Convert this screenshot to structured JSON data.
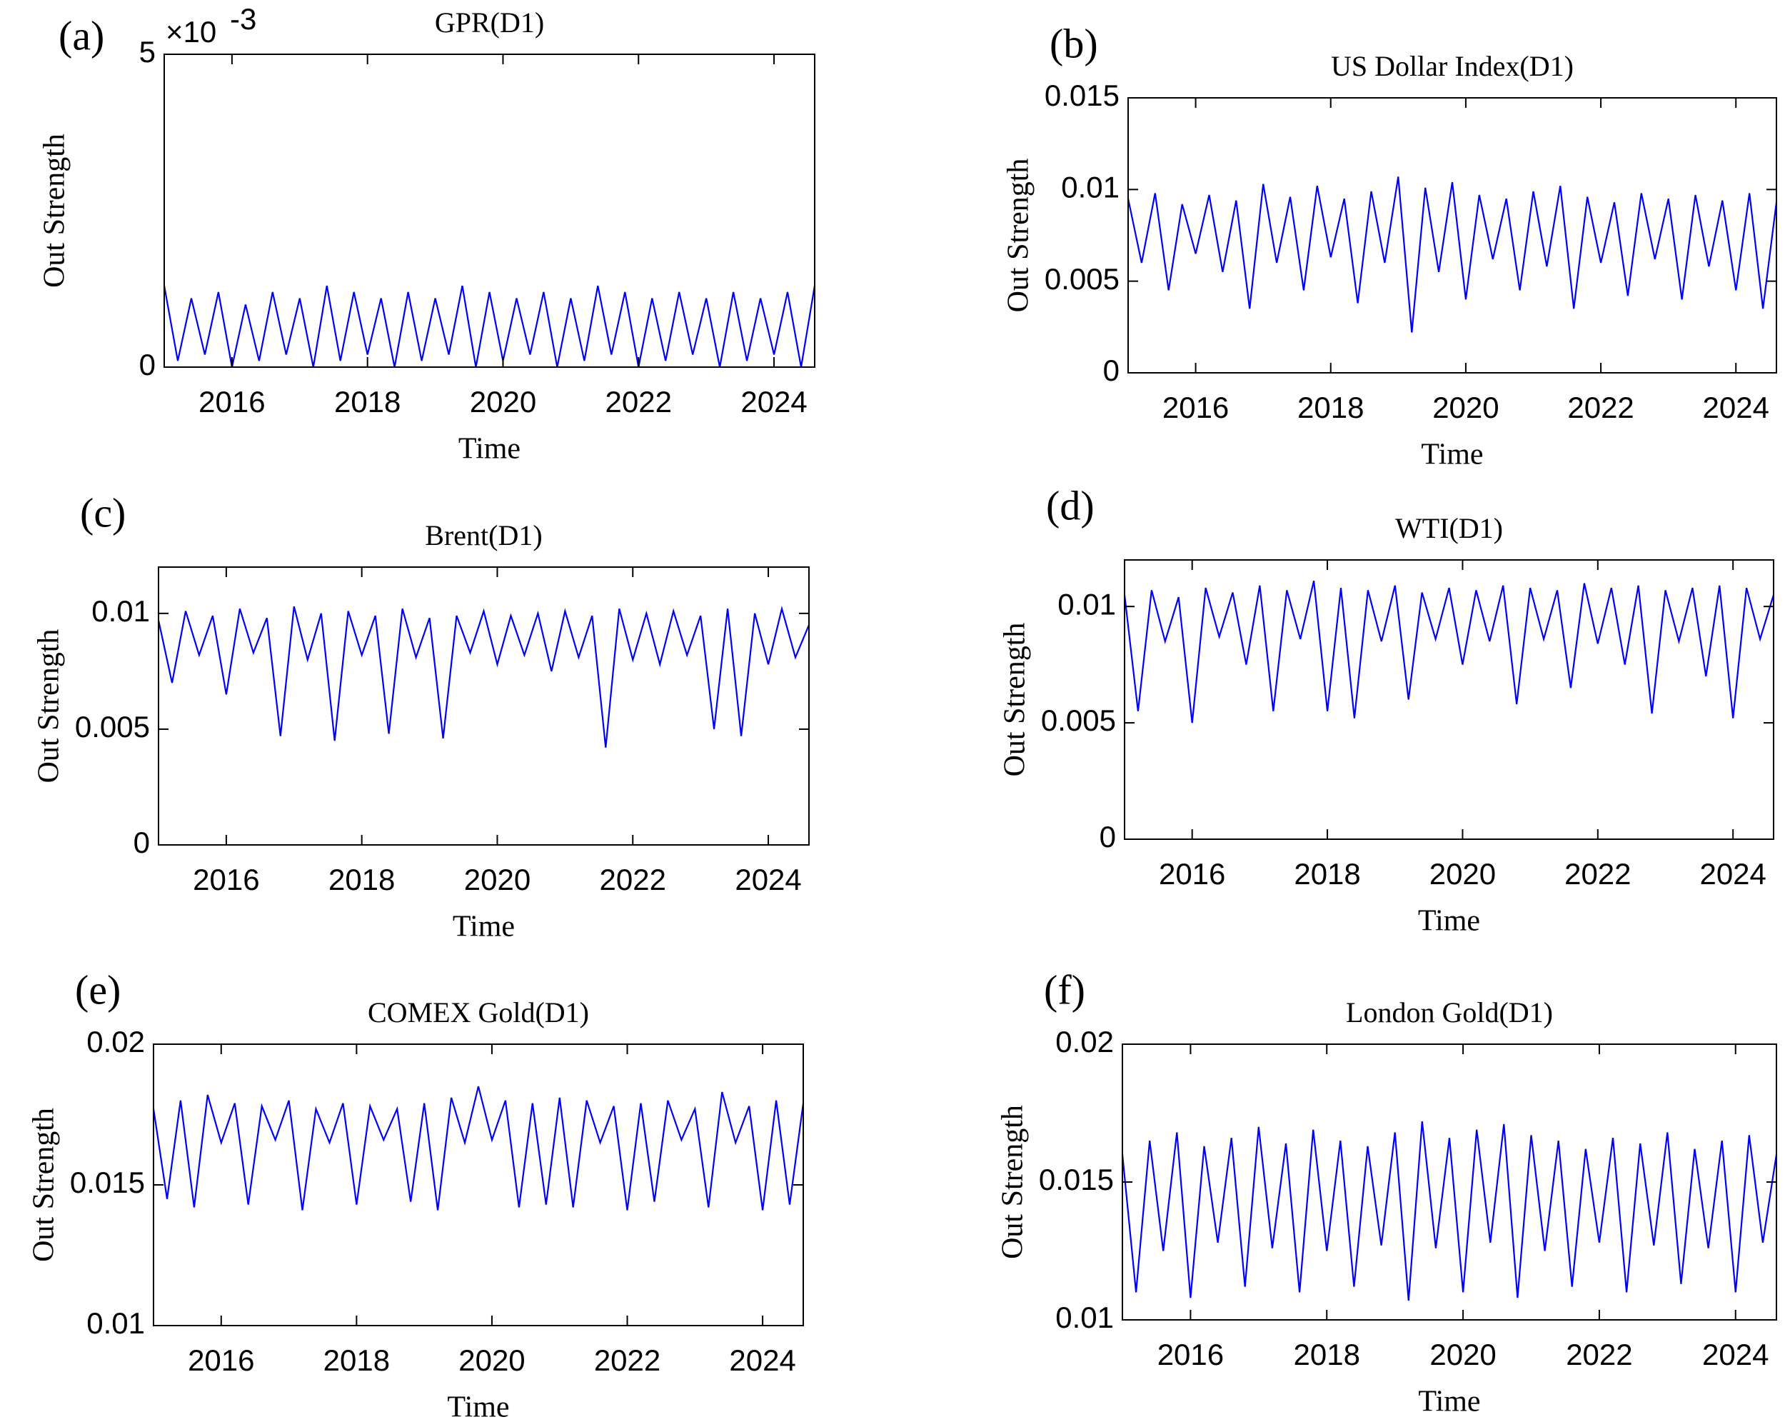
{
  "chart_data": [
    {
      "type": "line",
      "panel": "(a)",
      "title": "GPR(D1)",
      "xlabel": "Time",
      "ylabel": "Out Strength",
      "y_multiplier": "×10",
      "y_multiplier_exponent": "-3",
      "x": [
        2015,
        2015.2,
        2015.4,
        2015.6,
        2015.8,
        2016,
        2016.2,
        2016.4,
        2016.6,
        2016.8,
        2017,
        2017.2,
        2017.4,
        2017.6,
        2017.8,
        2018,
        2018.2,
        2018.4,
        2018.6,
        2018.8,
        2019,
        2019.2,
        2019.4,
        2019.6,
        2019.8,
        2020,
        2020.2,
        2020.4,
        2020.6,
        2020.8,
        2021,
        2021.2,
        2021.4,
        2021.6,
        2021.8,
        2022,
        2022.2,
        2022.4,
        2022.6,
        2022.8,
        2023,
        2023.2,
        2023.4,
        2023.6,
        2023.8,
        2024,
        2024.2,
        2024.4,
        2024.6
      ],
      "series": [
        {
          "color": "#0000ff",
          "values": [
            0.0013,
            0.0001,
            0.0011,
            0.0002,
            0.0012,
            0,
            0.001,
            0.0001,
            0.0012,
            0.0002,
            0.0011,
            0,
            0.0013,
            0.0001,
            0.0012,
            0.0002,
            0.0011,
            0,
            0.0012,
            0.0001,
            0.0011,
            0.0002,
            0.0013,
            0,
            0.0012,
            0.0001,
            0.0011,
            0.0002,
            0.0012,
            0,
            0.0011,
            0.0001,
            0.0013,
            0.0002,
            0.0012,
            0,
            0.0011,
            0.0001,
            0.0012,
            0.0002,
            0.0011,
            0,
            0.0012,
            0.0001,
            0.0011,
            0.0002,
            0.0012,
            0,
            0.0013
          ]
        }
      ],
      "xlim": [
        2015,
        2024.6
      ],
      "xticks": [
        2016,
        2018,
        2020,
        2022,
        2024
      ],
      "ylim": [
        0,
        0.005
      ],
      "yticks": [
        0,
        {
          "value": 0.005,
          "label": "5"
        }
      ]
    },
    {
      "type": "line",
      "panel": "(b)",
      "title": "US Dollar Index(D1)",
      "xlabel": "Time",
      "ylabel": "Out Strength",
      "x": [
        2015,
        2015.2,
        2015.4,
        2015.6,
        2015.8,
        2016,
        2016.2,
        2016.4,
        2016.6,
        2016.8,
        2017,
        2017.2,
        2017.4,
        2017.6,
        2017.8,
        2018,
        2018.2,
        2018.4,
        2018.6,
        2018.8,
        2019,
        2019.2,
        2019.4,
        2019.6,
        2019.8,
        2020,
        2020.2,
        2020.4,
        2020.6,
        2020.8,
        2021,
        2021.2,
        2021.4,
        2021.6,
        2021.8,
        2022,
        2022.2,
        2022.4,
        2022.6,
        2022.8,
        2023,
        2023.2,
        2023.4,
        2023.6,
        2023.8,
        2024,
        2024.2,
        2024.4,
        2024.6
      ],
      "series": [
        {
          "color": "#0000ff",
          "values": [
            0.0095,
            0.006,
            0.0098,
            0.0045,
            0.0092,
            0.0065,
            0.0097,
            0.0055,
            0.0094,
            0.0035,
            0.0103,
            0.006,
            0.0096,
            0.0045,
            0.0102,
            0.0063,
            0.0095,
            0.0038,
            0.0099,
            0.006,
            0.0107,
            0.0022,
            0.0101,
            0.0055,
            0.0104,
            0.004,
            0.0097,
            0.0062,
            0.0095,
            0.0045,
            0.0099,
            0.0058,
            0.0102,
            0.0035,
            0.0096,
            0.006,
            0.0093,
            0.0042,
            0.0098,
            0.0062,
            0.0095,
            0.004,
            0.0097,
            0.0058,
            0.0094,
            0.0045,
            0.0098,
            0.0035,
            0.0093
          ]
        }
      ],
      "xlim": [
        2015,
        2024.6
      ],
      "xticks": [
        2016,
        2018,
        2020,
        2022,
        2024
      ],
      "ylim": [
        0,
        0.015
      ],
      "yticks": [
        0,
        0.005,
        0.01,
        0.015
      ]
    },
    {
      "type": "line",
      "panel": "(c)",
      "title": "Brent(D1)",
      "xlabel": "Time",
      "ylabel": "Out Strength",
      "x": [
        2015,
        2015.2,
        2015.4,
        2015.6,
        2015.8,
        2016,
        2016.2,
        2016.4,
        2016.6,
        2016.8,
        2017,
        2017.2,
        2017.4,
        2017.6,
        2017.8,
        2018,
        2018.2,
        2018.4,
        2018.6,
        2018.8,
        2019,
        2019.2,
        2019.4,
        2019.6,
        2019.8,
        2020,
        2020.2,
        2020.4,
        2020.6,
        2020.8,
        2021,
        2021.2,
        2021.4,
        2021.6,
        2021.8,
        2022,
        2022.2,
        2022.4,
        2022.6,
        2022.8,
        2023,
        2023.2,
        2023.4,
        2023.6,
        2023.8,
        2024,
        2024.2,
        2024.4,
        2024.6
      ],
      "series": [
        {
          "color": "#0000ff",
          "values": [
            0.0097,
            0.007,
            0.0101,
            0.0082,
            0.0099,
            0.0065,
            0.0102,
            0.0083,
            0.0098,
            0.0047,
            0.0103,
            0.008,
            0.01,
            0.0045,
            0.0101,
            0.0082,
            0.0099,
            0.0048,
            0.0102,
            0.0081,
            0.0098,
            0.0046,
            0.0099,
            0.0083,
            0.0101,
            0.0078,
            0.0099,
            0.0082,
            0.01,
            0.0075,
            0.0101,
            0.0081,
            0.0099,
            0.0042,
            0.0102,
            0.008,
            0.01,
            0.0078,
            0.0101,
            0.0082,
            0.0099,
            0.005,
            0.0102,
            0.0047,
            0.01,
            0.0078,
            0.0102,
            0.0081,
            0.0095
          ]
        }
      ],
      "xlim": [
        2015,
        2024.6
      ],
      "xticks": [
        2016,
        2018,
        2020,
        2022,
        2024
      ],
      "ylim": [
        0,
        0.012
      ],
      "yticks": [
        0,
        0.005,
        0.01
      ]
    },
    {
      "type": "line",
      "panel": "(d)",
      "title": "WTI(D1)",
      "xlabel": "Time",
      "ylabel": "Out Strength",
      "x": [
        2015,
        2015.2,
        2015.4,
        2015.6,
        2015.8,
        2016,
        2016.2,
        2016.4,
        2016.6,
        2016.8,
        2017,
        2017.2,
        2017.4,
        2017.6,
        2017.8,
        2018,
        2018.2,
        2018.4,
        2018.6,
        2018.8,
        2019,
        2019.2,
        2019.4,
        2019.6,
        2019.8,
        2020,
        2020.2,
        2020.4,
        2020.6,
        2020.8,
        2021,
        2021.2,
        2021.4,
        2021.6,
        2021.8,
        2022,
        2022.2,
        2022.4,
        2022.6,
        2022.8,
        2023,
        2023.2,
        2023.4,
        2023.6,
        2023.8,
        2024,
        2024.2,
        2024.4,
        2024.6
      ],
      "series": [
        {
          "color": "#0000ff",
          "values": [
            0.0105,
            0.0055,
            0.0107,
            0.0085,
            0.0104,
            0.005,
            0.0108,
            0.0087,
            0.0106,
            0.0075,
            0.0109,
            0.0055,
            0.0107,
            0.0086,
            0.0111,
            0.0055,
            0.0108,
            0.0052,
            0.0107,
            0.0085,
            0.0109,
            0.006,
            0.0106,
            0.0086,
            0.0108,
            0.0075,
            0.0107,
            0.0085,
            0.0109,
            0.0058,
            0.0108,
            0.0086,
            0.0107,
            0.0065,
            0.011,
            0.0084,
            0.0108,
            0.0075,
            0.0109,
            0.0054,
            0.0107,
            0.0085,
            0.0108,
            0.007,
            0.0109,
            0.0052,
            0.0108,
            0.0086,
            0.0105
          ]
        }
      ],
      "xlim": [
        2015,
        2024.6
      ],
      "xticks": [
        2016,
        2018,
        2020,
        2022,
        2024
      ],
      "ylim": [
        0,
        0.012
      ],
      "yticks": [
        0,
        0.005,
        0.01
      ]
    },
    {
      "type": "line",
      "panel": "(e)",
      "title": "COMEX Gold(D1)",
      "xlabel": "Time",
      "ylabel": "Out Strength",
      "x": [
        2015,
        2015.2,
        2015.4,
        2015.6,
        2015.8,
        2016,
        2016.2,
        2016.4,
        2016.6,
        2016.8,
        2017,
        2017.2,
        2017.4,
        2017.6,
        2017.8,
        2018,
        2018.2,
        2018.4,
        2018.6,
        2018.8,
        2019,
        2019.2,
        2019.4,
        2019.6,
        2019.8,
        2020,
        2020.2,
        2020.4,
        2020.6,
        2020.8,
        2021,
        2021.2,
        2021.4,
        2021.6,
        2021.8,
        2022,
        2022.2,
        2022.4,
        2022.6,
        2022.8,
        2023,
        2023.2,
        2023.4,
        2023.6,
        2023.8,
        2024,
        2024.2,
        2024.4,
        2024.6
      ],
      "series": [
        {
          "color": "#0000ff",
          "values": [
            0.0177,
            0.0145,
            0.018,
            0.0142,
            0.0182,
            0.0165,
            0.0179,
            0.0143,
            0.0178,
            0.0166,
            0.018,
            0.0141,
            0.0177,
            0.0165,
            0.0179,
            0.0143,
            0.0178,
            0.0166,
            0.0177,
            0.0144,
            0.0179,
            0.0141,
            0.0181,
            0.0165,
            0.0185,
            0.0166,
            0.018,
            0.0142,
            0.0179,
            0.0143,
            0.0181,
            0.0142,
            0.018,
            0.0165,
            0.0178,
            0.0141,
            0.0179,
            0.0144,
            0.018,
            0.0166,
            0.0177,
            0.0142,
            0.0183,
            0.0165,
            0.0178,
            0.0141,
            0.018,
            0.0143,
            0.0179
          ]
        }
      ],
      "xlim": [
        2015,
        2024.6
      ],
      "xticks": [
        2016,
        2018,
        2020,
        2022,
        2024
      ],
      "ylim": [
        0.01,
        0.02
      ],
      "yticks": [
        0.01,
        0.015,
        0.02
      ]
    },
    {
      "type": "line",
      "panel": "(f)",
      "title": "London Gold(D1)",
      "xlabel": "Time",
      "ylabel": "Out Strength",
      "x": [
        2015,
        2015.2,
        2015.4,
        2015.6,
        2015.8,
        2016,
        2016.2,
        2016.4,
        2016.6,
        2016.8,
        2017,
        2017.2,
        2017.4,
        2017.6,
        2017.8,
        2018,
        2018.2,
        2018.4,
        2018.6,
        2018.8,
        2019,
        2019.2,
        2019.4,
        2019.6,
        2019.8,
        2020,
        2020.2,
        2020.4,
        2020.6,
        2020.8,
        2021,
        2021.2,
        2021.4,
        2021.6,
        2021.8,
        2022,
        2022.2,
        2022.4,
        2022.6,
        2022.8,
        2023,
        2023.2,
        2023.4,
        2023.6,
        2023.8,
        2024,
        2024.2,
        2024.4,
        2024.6
      ],
      "series": [
        {
          "color": "#0000ff",
          "values": [
            0.016,
            0.011,
            0.0165,
            0.0125,
            0.0168,
            0.0108,
            0.0163,
            0.0128,
            0.0166,
            0.0112,
            0.017,
            0.0126,
            0.0164,
            0.011,
            0.0169,
            0.0125,
            0.0165,
            0.0112,
            0.0163,
            0.0127,
            0.0168,
            0.0107,
            0.0172,
            0.0126,
            0.0166,
            0.011,
            0.0169,
            0.0128,
            0.0171,
            0.0108,
            0.0167,
            0.0125,
            0.0165,
            0.0112,
            0.0162,
            0.0128,
            0.0166,
            0.011,
            0.0164,
            0.0127,
            0.0168,
            0.0113,
            0.0162,
            0.0126,
            0.0165,
            0.011,
            0.0167,
            0.0128,
            0.016
          ]
        }
      ],
      "xlim": [
        2015,
        2024.6
      ],
      "xticks": [
        2016,
        2018,
        2020,
        2022,
        2024
      ],
      "ylim": [
        0.01,
        0.02
      ],
      "yticks": [
        0.01,
        0.015,
        0.02
      ]
    }
  ]
}
